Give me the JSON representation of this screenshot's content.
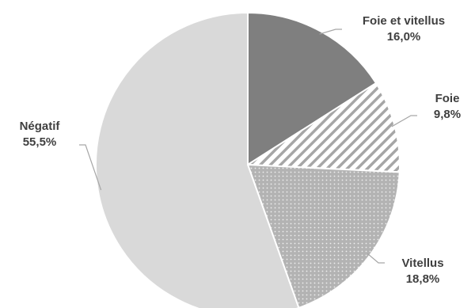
{
  "chart_data": {
    "type": "pie",
    "start_angle_deg": 0,
    "direction": "clockwise",
    "slices": [
      {
        "name": "Foie et vitellus",
        "value": 16.0,
        "label": "16,0%",
        "color": "#7f7f7f",
        "pattern": "solid"
      },
      {
        "name": "Foie",
        "value": 9.8,
        "label": "9,8%",
        "color": "#a6a6a6",
        "pattern": "diagonal-stripes"
      },
      {
        "name": "Vitellus",
        "value": 18.8,
        "label": "18,8%",
        "color": "#a6a6a6",
        "pattern": "dots"
      },
      {
        "name": "Négatif",
        "value": 55.5,
        "label": "55,5%",
        "color": "#d9d9d9",
        "pattern": "solid"
      }
    ]
  }
}
